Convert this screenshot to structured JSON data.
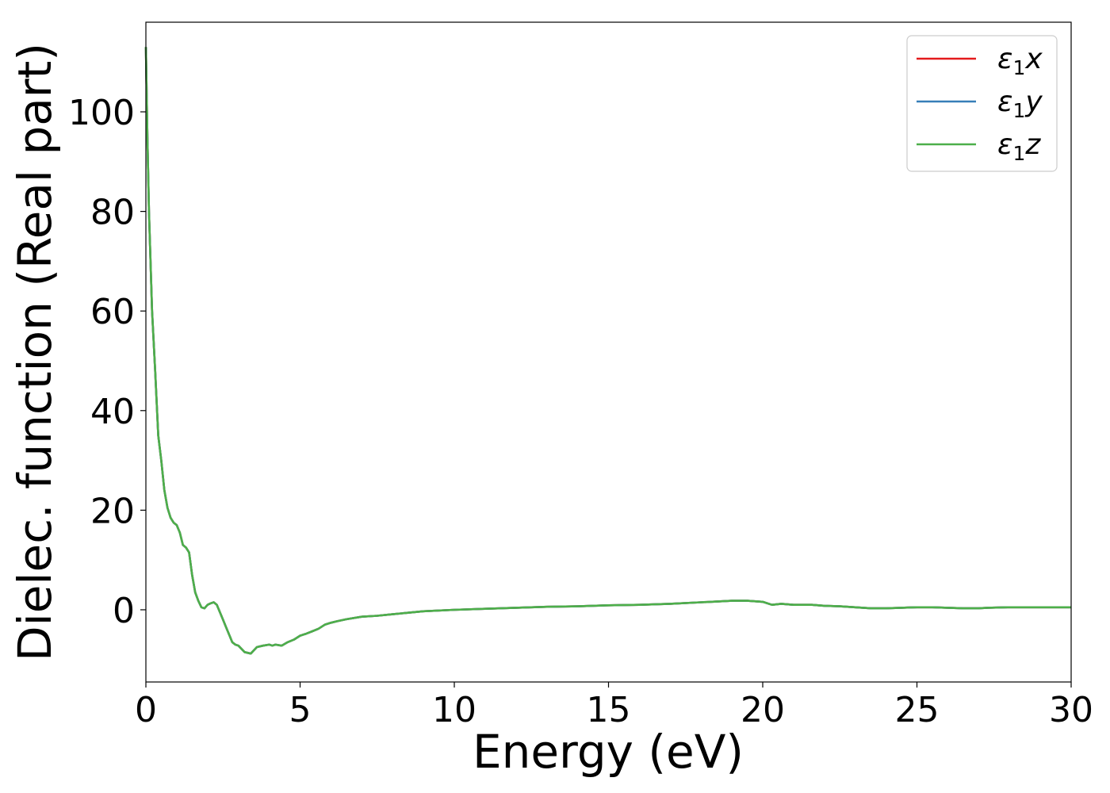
{
  "chart_data": {
    "type": "line",
    "title": "",
    "xlabel": "Energy (eV)",
    "ylabel": "Dielec. function (Real part)",
    "xlim": [
      0,
      30
    ],
    "ylim": [
      -14.5,
      118
    ],
    "xticks": [
      0,
      5,
      10,
      15,
      20,
      25,
      30
    ],
    "yticks": [
      0,
      20,
      40,
      60,
      80,
      100
    ],
    "grid": false,
    "legend_position": "top-right",
    "series": [
      {
        "name": "ε₁x",
        "legend_main": "ε",
        "legend_sub": "1",
        "legend_suffix": "x",
        "color": "#e41a1c",
        "x": [
          0,
          0.05,
          0.1,
          0.2,
          0.3,
          0.4,
          0.5,
          0.6,
          0.7,
          0.8,
          0.9,
          1.0,
          1.1,
          1.2,
          1.3,
          1.4,
          1.5,
          1.6,
          1.7,
          1.8,
          1.9,
          2.0,
          2.1,
          2.2,
          2.3,
          2.4,
          2.5,
          2.6,
          2.7,
          2.8,
          2.9,
          3.0,
          3.2,
          3.4,
          3.6,
          3.8,
          4.0,
          4.1,
          4.2,
          4.4,
          4.6,
          4.8,
          5.0,
          5.2,
          5.4,
          5.6,
          5.8,
          6.0,
          6.2,
          6.5,
          7.0,
          7.5,
          8.0,
          8.5,
          9.0,
          10.0,
          11.0,
          12.0,
          13.0,
          14.0,
          15.0,
          16.0,
          17.0,
          18.0,
          19.0,
          19.5,
          20.0,
          20.3,
          20.6,
          21.0,
          21.3,
          21.6,
          22.0,
          22.5,
          23.0,
          23.5,
          24.0,
          24.5,
          25.0,
          25.5,
          26.0,
          26.5,
          26.8,
          27.0,
          27.3,
          28.0,
          29.0,
          30.0
        ],
        "y": [
          113,
          95,
          80,
          60,
          48,
          35,
          30,
          24,
          20.5,
          18.5,
          17.5,
          17,
          15.5,
          13,
          12.5,
          11.5,
          7,
          3.5,
          1.8,
          0.5,
          0.3,
          1.0,
          1.3,
          1.5,
          1.0,
          -0.5,
          -2,
          -3.5,
          -5,
          -6.5,
          -7,
          -7.2,
          -8.5,
          -8.8,
          -7.5,
          -7.2,
          -7.0,
          -7.2,
          -7.0,
          -7.2,
          -6.5,
          -6.0,
          -5.2,
          -4.8,
          -4.3,
          -3.8,
          -3.0,
          -2.6,
          -2.3,
          -1.9,
          -1.4,
          -1.2,
          -0.9,
          -0.6,
          -0.3,
          0.0,
          0.2,
          0.4,
          0.6,
          0.7,
          0.9,
          1.0,
          1.2,
          1.5,
          1.8,
          1.8,
          1.6,
          1.0,
          1.2,
          1.0,
          1.0,
          1.0,
          0.8,
          0.7,
          0.5,
          0.3,
          0.3,
          0.4,
          0.5,
          0.5,
          0.4,
          0.3,
          0.3,
          0.3,
          0.4,
          0.5,
          0.5,
          0.5
        ]
      },
      {
        "name": "ε₁y",
        "legend_main": "ε",
        "legend_sub": "1",
        "legend_suffix": "y",
        "color": "#377eb8",
        "x": [
          0,
          0.05,
          0.1,
          0.2,
          0.3,
          0.4,
          0.5,
          0.6,
          0.7,
          0.8,
          0.9,
          1.0,
          1.1,
          1.2,
          1.3,
          1.4,
          1.5,
          1.6,
          1.7,
          1.8,
          1.9,
          2.0,
          2.1,
          2.2,
          2.3,
          2.4,
          2.5,
          2.6,
          2.7,
          2.8,
          2.9,
          3.0,
          3.2,
          3.4,
          3.6,
          3.8,
          4.0,
          4.1,
          4.2,
          4.4,
          4.6,
          4.8,
          5.0,
          5.2,
          5.4,
          5.6,
          5.8,
          6.0,
          6.2,
          6.5,
          7.0,
          7.5,
          8.0,
          8.5,
          9.0,
          10.0,
          11.0,
          12.0,
          13.0,
          14.0,
          15.0,
          16.0,
          17.0,
          18.0,
          19.0,
          19.5,
          20.0,
          20.3,
          20.6,
          21.0,
          21.3,
          21.6,
          22.0,
          22.5,
          23.0,
          23.5,
          24.0,
          24.5,
          25.0,
          25.5,
          26.0,
          26.5,
          26.8,
          27.0,
          27.3,
          28.0,
          29.0,
          30.0
        ],
        "y": [
          113,
          95,
          80,
          60,
          48,
          35,
          30,
          24,
          20.5,
          18.5,
          17.5,
          17,
          15.5,
          13,
          12.5,
          11.5,
          7,
          3.5,
          1.8,
          0.5,
          0.3,
          1.0,
          1.3,
          1.5,
          1.0,
          -0.5,
          -2,
          -3.5,
          -5,
          -6.5,
          -7,
          -7.2,
          -8.5,
          -8.8,
          -7.5,
          -7.2,
          -7.0,
          -7.2,
          -7.0,
          -7.2,
          -6.5,
          -6.0,
          -5.2,
          -4.8,
          -4.3,
          -3.8,
          -3.0,
          -2.6,
          -2.3,
          -1.9,
          -1.4,
          -1.2,
          -0.9,
          -0.6,
          -0.3,
          0.0,
          0.2,
          0.4,
          0.6,
          0.7,
          0.9,
          1.0,
          1.2,
          1.5,
          1.8,
          1.8,
          1.6,
          1.0,
          1.2,
          1.0,
          1.0,
          1.0,
          0.8,
          0.7,
          0.5,
          0.3,
          0.3,
          0.4,
          0.5,
          0.5,
          0.4,
          0.3,
          0.3,
          0.3,
          0.4,
          0.5,
          0.5,
          0.5
        ]
      },
      {
        "name": "ε₁z",
        "legend_main": "ε",
        "legend_sub": "1",
        "legend_suffix": "z",
        "color": "#4daf4a",
        "x": [
          0,
          0.05,
          0.1,
          0.2,
          0.3,
          0.4,
          0.5,
          0.6,
          0.7,
          0.8,
          0.9,
          1.0,
          1.1,
          1.2,
          1.3,
          1.4,
          1.5,
          1.6,
          1.7,
          1.8,
          1.9,
          2.0,
          2.1,
          2.2,
          2.3,
          2.4,
          2.5,
          2.6,
          2.7,
          2.8,
          2.9,
          3.0,
          3.2,
          3.4,
          3.6,
          3.8,
          4.0,
          4.1,
          4.2,
          4.4,
          4.6,
          4.8,
          5.0,
          5.2,
          5.4,
          5.6,
          5.8,
          6.0,
          6.2,
          6.5,
          7.0,
          7.5,
          8.0,
          8.5,
          9.0,
          10.0,
          11.0,
          12.0,
          13.0,
          14.0,
          15.0,
          16.0,
          17.0,
          18.0,
          19.0,
          19.5,
          20.0,
          20.3,
          20.6,
          21.0,
          21.3,
          21.6,
          22.0,
          22.5,
          23.0,
          23.5,
          24.0,
          24.5,
          25.0,
          25.5,
          26.0,
          26.5,
          26.8,
          27.0,
          27.3,
          28.0,
          29.0,
          30.0
        ],
        "y": [
          113,
          95,
          80,
          60,
          48,
          35,
          30,
          24,
          20.5,
          18.5,
          17.5,
          17,
          15.5,
          13,
          12.5,
          11.5,
          7,
          3.5,
          1.8,
          0.5,
          0.3,
          1.0,
          1.3,
          1.5,
          1.0,
          -0.5,
          -2,
          -3.5,
          -5,
          -6.5,
          -7,
          -7.2,
          -8.5,
          -8.8,
          -7.5,
          -7.2,
          -7.0,
          -7.2,
          -7.0,
          -7.2,
          -6.5,
          -6.0,
          -5.2,
          -4.8,
          -4.3,
          -3.8,
          -3.0,
          -2.6,
          -2.3,
          -1.9,
          -1.4,
          -1.2,
          -0.9,
          -0.6,
          -0.3,
          0.0,
          0.2,
          0.4,
          0.6,
          0.7,
          0.9,
          1.0,
          1.2,
          1.5,
          1.8,
          1.8,
          1.6,
          1.0,
          1.2,
          1.0,
          1.0,
          1.0,
          0.8,
          0.7,
          0.5,
          0.3,
          0.3,
          0.4,
          0.5,
          0.5,
          0.4,
          0.3,
          0.3,
          0.3,
          0.4,
          0.5,
          0.5,
          0.5
        ]
      }
    ]
  }
}
